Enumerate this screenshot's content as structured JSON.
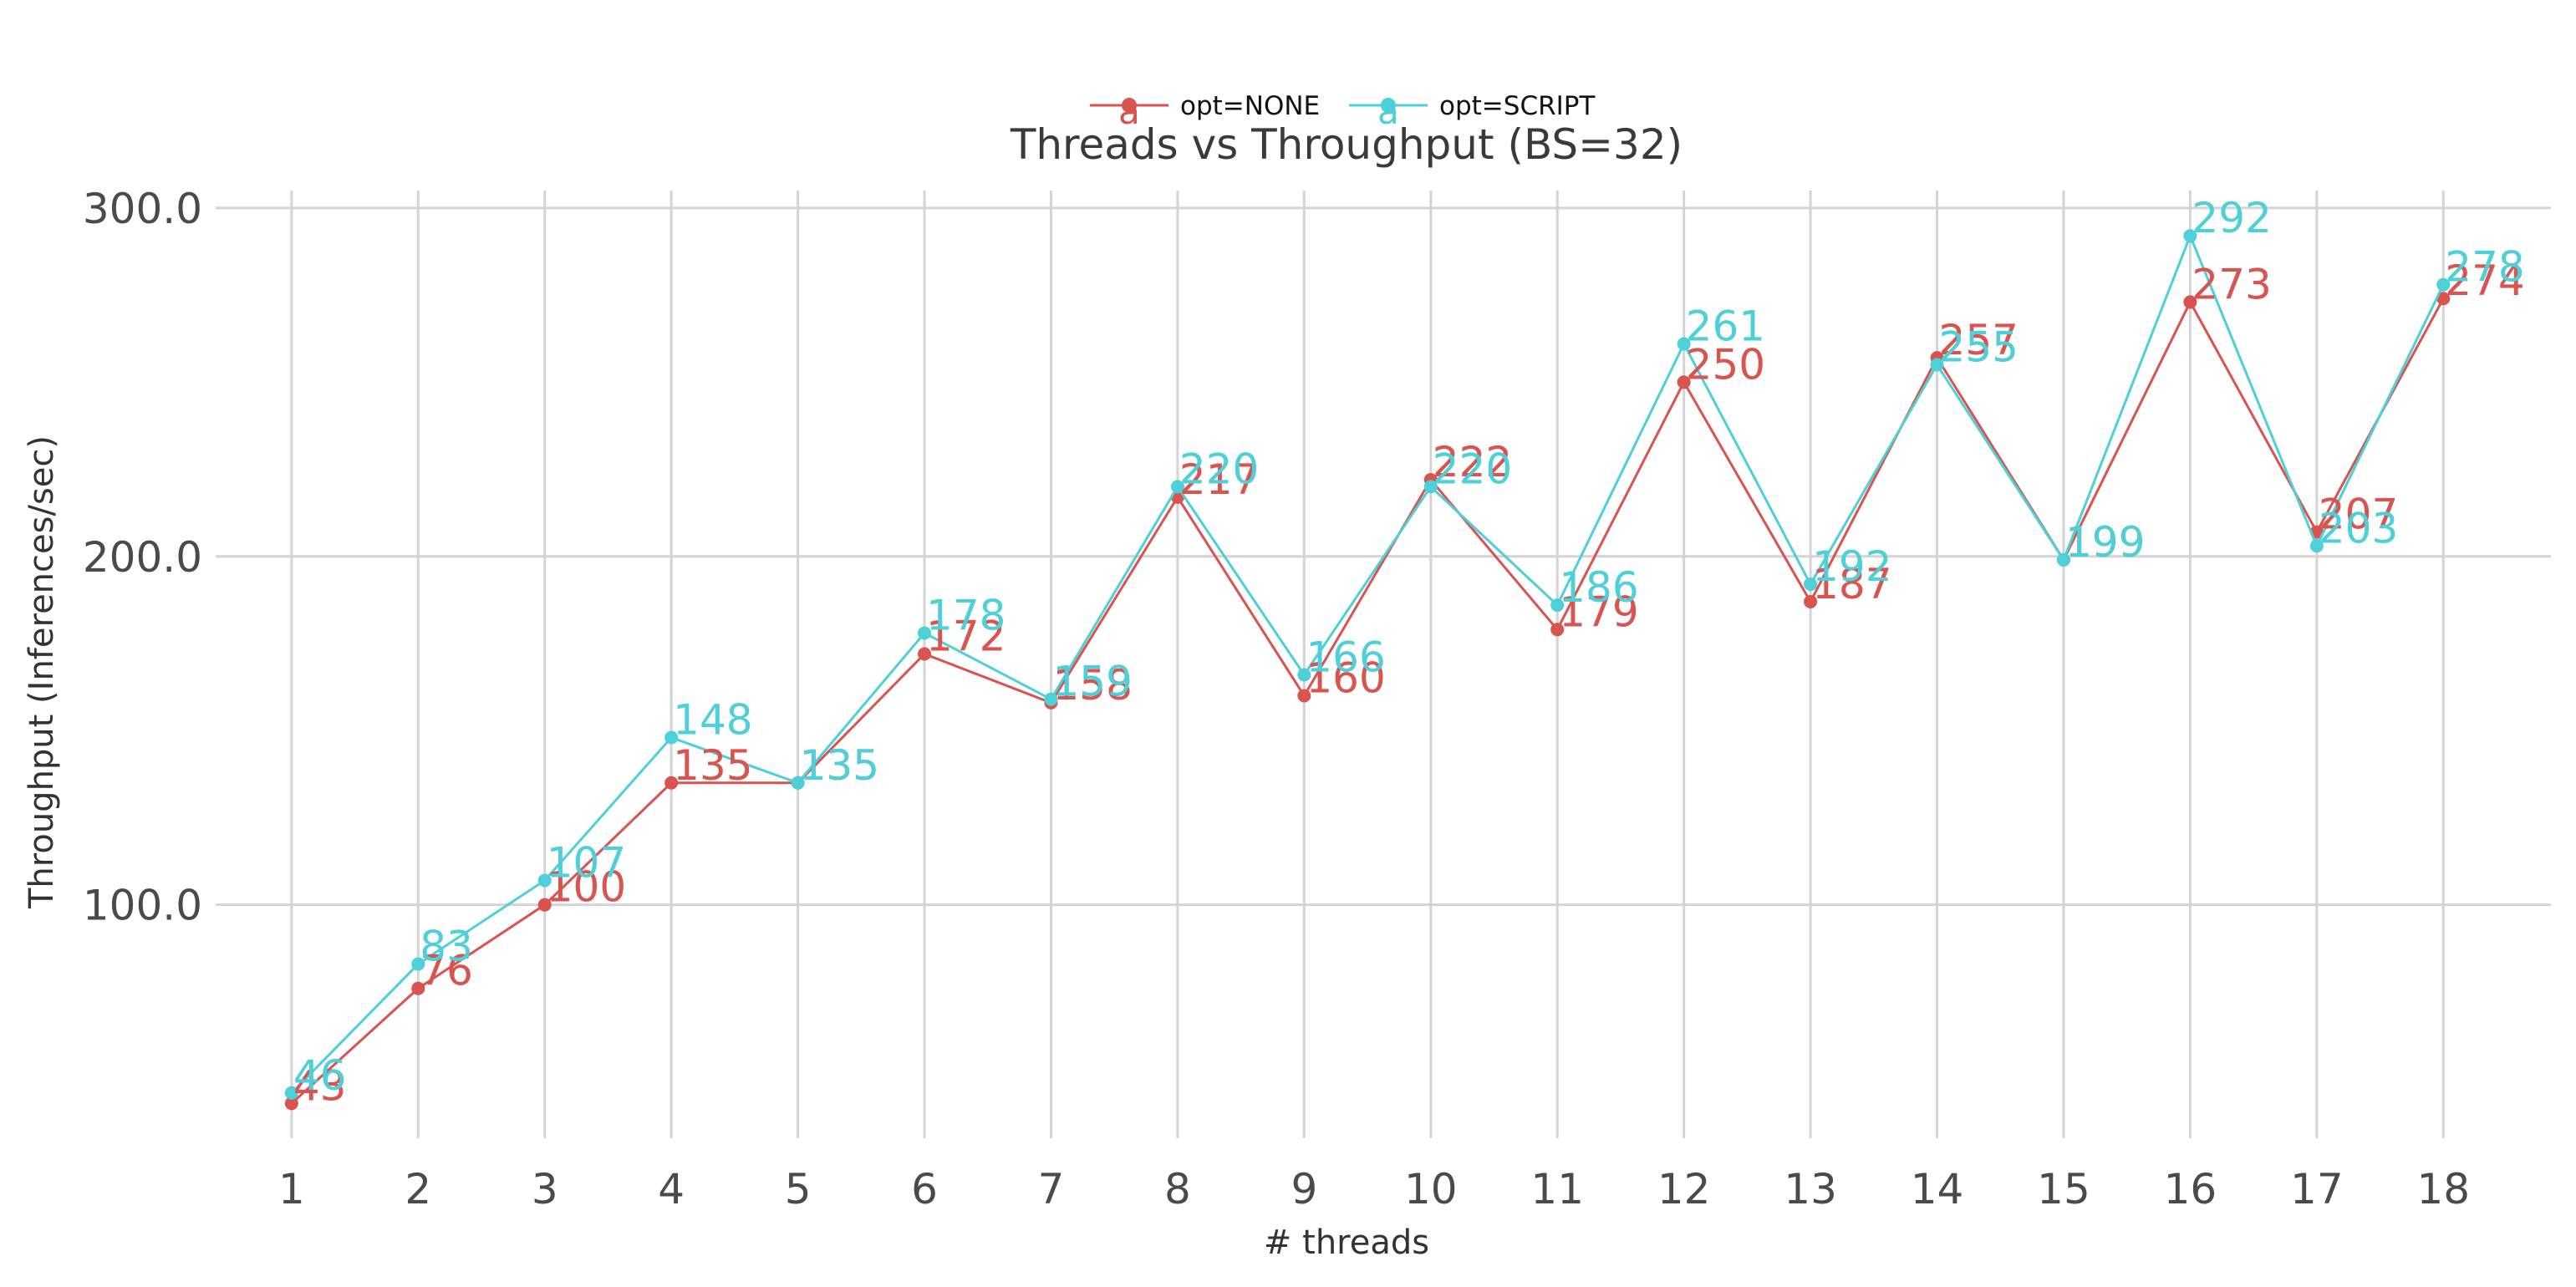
{
  "chart_data": {
    "type": "line",
    "title": "Threads vs Throughput (BS=32)",
    "xlabel": "# threads",
    "ylabel": "Throughput (Inferences/sec)",
    "x": [
      1,
      2,
      3,
      4,
      5,
      6,
      7,
      8,
      9,
      10,
      11,
      12,
      13,
      14,
      15,
      16,
      17,
      18
    ],
    "x_tick_labels": [
      "1",
      "2",
      "3",
      "4",
      "5",
      "6",
      "7",
      "8",
      "9",
      "10",
      "11",
      "12",
      "13",
      "14",
      "15",
      "16",
      "17",
      "18"
    ],
    "xlim": [
      0.4,
      18.85
    ],
    "ylim": [
      33,
      305
    ],
    "y_ticks": [
      100,
      200,
      300
    ],
    "y_tick_labels": [
      "100.0",
      "200.0",
      "300.0"
    ],
    "grid": true,
    "legend_position": "top-center",
    "series": [
      {
        "name": "opt=NONE",
        "color": "#d9534f",
        "marker_glyph": "a",
        "values": [
          43,
          76,
          100,
          135,
          135,
          172,
          158,
          217,
          160,
          222,
          179,
          250,
          187,
          257,
          199,
          273,
          207,
          274
        ],
        "labels": [
          "43",
          "76",
          "100",
          "135",
          "135",
          "172",
          "158",
          "217",
          "160",
          "222",
          "179",
          "250",
          "187",
          "257",
          "199",
          "273",
          "207",
          "274"
        ]
      },
      {
        "name": "opt=SCRIPT",
        "color": "#4dd0d8",
        "marker_glyph": "a",
        "values": [
          46,
          83,
          107,
          148,
          135,
          178,
          159,
          220,
          166,
          220,
          186,
          261,
          192,
          255,
          199,
          292,
          203,
          278
        ],
        "labels": [
          "46",
          "83",
          "107",
          "148",
          "135",
          "178",
          "159",
          "220",
          "166",
          "220",
          "186",
          "261",
          "192",
          "255",
          "199",
          "292",
          "203",
          "278"
        ]
      }
    ]
  }
}
